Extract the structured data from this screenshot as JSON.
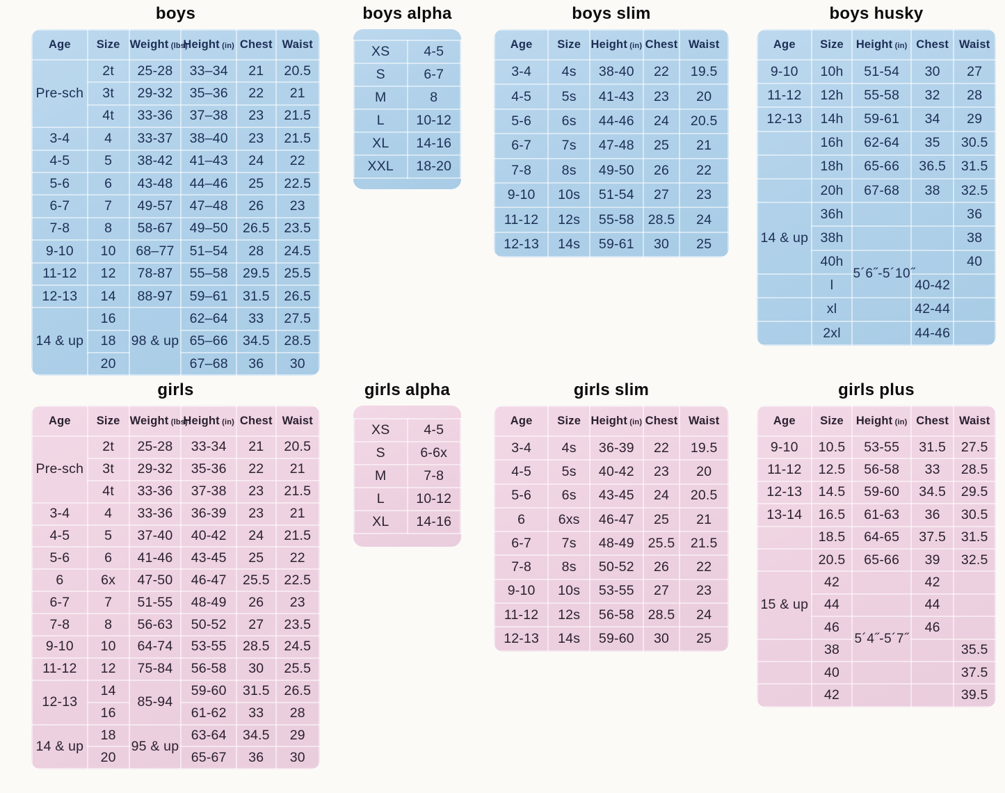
{
  "colors": {
    "page_background": "#fbfaf7",
    "table_blue": "#b0d1e9",
    "table_pink": "#eed2e1",
    "text_blue": "#1d2e55",
    "text_pink": "#2b2130",
    "grid_line": "#ffffff"
  },
  "tables": [
    {
      "id": "boys",
      "title": "boys",
      "theme": "blue",
      "headers": [
        {
          "label": "Age"
        },
        {
          "label": "Size"
        },
        {
          "label": "Weight",
          "unit": "(lbs)"
        },
        {
          "label": "Height",
          "unit": "(in)"
        },
        {
          "label": "Chest"
        },
        {
          "label": "Waist"
        }
      ],
      "rows": [
        [
          {
            "t": "Pre-sch",
            "rs": 3
          },
          "2t",
          "25-28",
          "33–34",
          "21",
          "20.5"
        ],
        [
          "3t",
          "29-32",
          "35–36",
          "22",
          "21"
        ],
        [
          "4t",
          "33-36",
          "37–38",
          "23",
          "21.5"
        ],
        [
          "3-4",
          "4",
          "33-37",
          "38–40",
          "23",
          "21.5"
        ],
        [
          "4-5",
          "5",
          "38-42",
          "41–43",
          "24",
          "22"
        ],
        [
          "5-6",
          "6",
          "43-48",
          "44–46",
          "25",
          "22.5"
        ],
        [
          "6-7",
          "7",
          "49-57",
          "47–48",
          "26",
          "23"
        ],
        [
          "7-8",
          "8",
          "58-67",
          "49–50",
          "26.5",
          "23.5"
        ],
        [
          "9-10",
          "10",
          "68–77",
          "51–54",
          "28",
          "24.5"
        ],
        [
          "11-12",
          "12",
          "78-87",
          "55–58",
          "29.5",
          "25.5"
        ],
        [
          "12-13",
          "14",
          "88-97",
          "59–61",
          "31.5",
          "26.5"
        ],
        [
          {
            "t": "14 & up",
            "rs": 3
          },
          "16",
          {
            "t": "98 & up",
            "rs": 3
          },
          "62–64",
          "33",
          "27.5"
        ],
        [
          "18",
          "65–66",
          "34.5",
          "28.5"
        ],
        [
          "20",
          "67–68",
          "36",
          "30"
        ]
      ]
    },
    {
      "id": "boys-alpha",
      "title": "boys alpha",
      "theme": "blue",
      "rows": [
        [
          "XS",
          "4-5"
        ],
        [
          "S",
          "6-7"
        ],
        [
          "M",
          "8"
        ],
        [
          "L",
          "10-12"
        ],
        [
          "XL",
          "14-16"
        ],
        [
          "XXL",
          "18-20"
        ]
      ]
    },
    {
      "id": "boys-slim",
      "title": "boys slim",
      "theme": "blue",
      "headers": [
        {
          "label": "Age"
        },
        {
          "label": "Size"
        },
        {
          "label": "Height",
          "unit": "(in)"
        },
        {
          "label": "Chest"
        },
        {
          "label": "Waist"
        }
      ],
      "rows": [
        [
          "3-4",
          "4s",
          "38-40",
          "22",
          "19.5"
        ],
        [
          "4-5",
          "5s",
          "41-43",
          "23",
          "20"
        ],
        [
          "5-6",
          "6s",
          "44-46",
          "24",
          "20.5"
        ],
        [
          "6-7",
          "7s",
          "47-48",
          "25",
          "21"
        ],
        [
          "7-8",
          "8s",
          "49-50",
          "26",
          "22"
        ],
        [
          "9-10",
          "10s",
          "51-54",
          "27",
          "23"
        ],
        [
          "11-12",
          "12s",
          "55-58",
          "28.5",
          "24"
        ],
        [
          "12-13",
          "14s",
          "59-61",
          "30",
          "25"
        ]
      ]
    },
    {
      "id": "boys-husky",
      "title": "boys husky",
      "theme": "blue",
      "headers": [
        {
          "label": "Age"
        },
        {
          "label": "Size"
        },
        {
          "label": "Height",
          "unit": "(in)"
        },
        {
          "label": "Chest"
        },
        {
          "label": "Waist"
        }
      ],
      "rows": [
        [
          "9-10",
          "10h",
          "51-54",
          "30",
          "27"
        ],
        [
          "11-12",
          "12h",
          "55-58",
          "32",
          "28"
        ],
        [
          "12-13",
          "14h",
          "59-61",
          "34",
          "29"
        ],
        [
          "",
          "16h",
          "62-64",
          "35",
          "30.5"
        ],
        [
          "",
          "18h",
          "65-66",
          "36.5",
          "31.5"
        ],
        [
          "",
          "20h",
          "67-68",
          "38",
          "32.5"
        ],
        [
          {
            "t": "14 & up",
            "rs": 3
          },
          "36h",
          "",
          "",
          "36"
        ],
        [
          "38h",
          "",
          "",
          "38"
        ],
        [
          "40h",
          {
            "t": "5´6˝-5´10˝",
            "rs": 2,
            "cls": "note"
          },
          "",
          "40"
        ],
        [
          "",
          "l",
          "40-42",
          ""
        ],
        [
          "",
          "xl",
          "",
          "42-44",
          ""
        ],
        [
          "",
          "2xl",
          "",
          "44-46",
          ""
        ]
      ]
    },
    {
      "id": "girls",
      "title": "girls",
      "theme": "pink",
      "headers": [
        {
          "label": "Age"
        },
        {
          "label": "Size"
        },
        {
          "label": "Weight",
          "unit": "(lbs)"
        },
        {
          "label": "Height",
          "unit": "(in)"
        },
        {
          "label": "Chest"
        },
        {
          "label": "Waist"
        }
      ],
      "rows": [
        [
          {
            "t": "Pre-sch",
            "rs": 3
          },
          "2t",
          "25-28",
          "33-34",
          "21",
          "20.5"
        ],
        [
          "3t",
          "29-32",
          "35-36",
          "22",
          "21"
        ],
        [
          "4t",
          "33-36",
          "37-38",
          "23",
          "21.5"
        ],
        [
          "3-4",
          "4",
          "33-36",
          "36-39",
          "23",
          "21"
        ],
        [
          "4-5",
          "5",
          "37-40",
          "40-42",
          "24",
          "21.5"
        ],
        [
          "5-6",
          "6",
          "41-46",
          "43-45",
          "25",
          "22"
        ],
        [
          "6",
          "6x",
          "47-50",
          "46-47",
          "25.5",
          "22.5"
        ],
        [
          "6-7",
          "7",
          "51-55",
          "48-49",
          "26",
          "23"
        ],
        [
          "7-8",
          "8",
          "56-63",
          "50-52",
          "27",
          "23.5"
        ],
        [
          "9-10",
          "10",
          "64-74",
          "53-55",
          "28.5",
          "24.5"
        ],
        [
          "11-12",
          "12",
          "75-84",
          "56-58",
          "30",
          "25.5"
        ],
        [
          {
            "t": "12-13",
            "rs": 2
          },
          "14",
          {
            "t": "85-94",
            "rs": 2
          },
          "59-60",
          "31.5",
          "26.5"
        ],
        [
          "16",
          "61-62",
          "33",
          "28"
        ],
        [
          {
            "t": "14 & up",
            "rs": 2
          },
          "18",
          {
            "t": "95 & up",
            "rs": 2
          },
          "63-64",
          "34.5",
          "29"
        ],
        [
          "20",
          "65-67",
          "36",
          "30"
        ]
      ]
    },
    {
      "id": "girls-alpha",
      "title": "girls alpha",
      "theme": "pink",
      "rows": [
        [
          "XS",
          "4-5"
        ],
        [
          "S",
          "6-6x"
        ],
        [
          "M",
          "7-8"
        ],
        [
          "L",
          "10-12"
        ],
        [
          "XL",
          "14-16"
        ]
      ]
    },
    {
      "id": "girls-slim",
      "title": "girls slim",
      "theme": "pink",
      "headers": [
        {
          "label": "Age"
        },
        {
          "label": "Size"
        },
        {
          "label": "Height",
          "unit": "(in)"
        },
        {
          "label": "Chest"
        },
        {
          "label": "Waist"
        }
      ],
      "rows": [
        [
          "3-4",
          "4s",
          "36-39",
          "22",
          "19.5"
        ],
        [
          "4-5",
          "5s",
          "40-42",
          "23",
          "20"
        ],
        [
          "5-6",
          "6s",
          "43-45",
          "24",
          "20.5"
        ],
        [
          "6",
          "6xs",
          "46-47",
          "25",
          "21"
        ],
        [
          "6-7",
          "7s",
          "48-49",
          "25.5",
          "21.5"
        ],
        [
          "7-8",
          "8s",
          "50-52",
          "26",
          "22"
        ],
        [
          "9-10",
          "10s",
          "53-55",
          "27",
          "23"
        ],
        [
          "11-12",
          "12s",
          "56-58",
          "28.5",
          "24"
        ],
        [
          "12-13",
          "14s",
          "59-60",
          "30",
          "25"
        ]
      ]
    },
    {
      "id": "girls-plus",
      "title": "girls plus",
      "theme": "pink",
      "headers": [
        {
          "label": "Age"
        },
        {
          "label": "Size"
        },
        {
          "label": "Height",
          "unit": "(in)"
        },
        {
          "label": "Chest"
        },
        {
          "label": "Waist"
        }
      ],
      "rows": [
        [
          "9-10",
          "10.5",
          "53-55",
          "31.5",
          "27.5"
        ],
        [
          "11-12",
          "12.5",
          "56-58",
          "33",
          "28.5"
        ],
        [
          "12-13",
          "14.5",
          "59-60",
          "34.5",
          "29.5"
        ],
        [
          "13-14",
          "16.5",
          "61-63",
          "36",
          "30.5"
        ],
        [
          "",
          "18.5",
          "64-65",
          "37.5",
          "31.5"
        ],
        [
          "",
          "20.5",
          "65-66",
          "39",
          "32.5"
        ],
        [
          {
            "t": "15 & up",
            "rs": 3
          },
          "42",
          "",
          "42",
          ""
        ],
        [
          "44",
          "",
          "44",
          ""
        ],
        [
          "46",
          {
            "t": "5´4˝-5´7˝",
            "rs": 2,
            "cls": "note"
          },
          "46",
          ""
        ],
        [
          "",
          "38",
          "",
          "35.5"
        ],
        [
          "",
          "40",
          "",
          "",
          "37.5"
        ],
        [
          "",
          "42",
          "",
          "",
          "39.5"
        ]
      ]
    }
  ]
}
